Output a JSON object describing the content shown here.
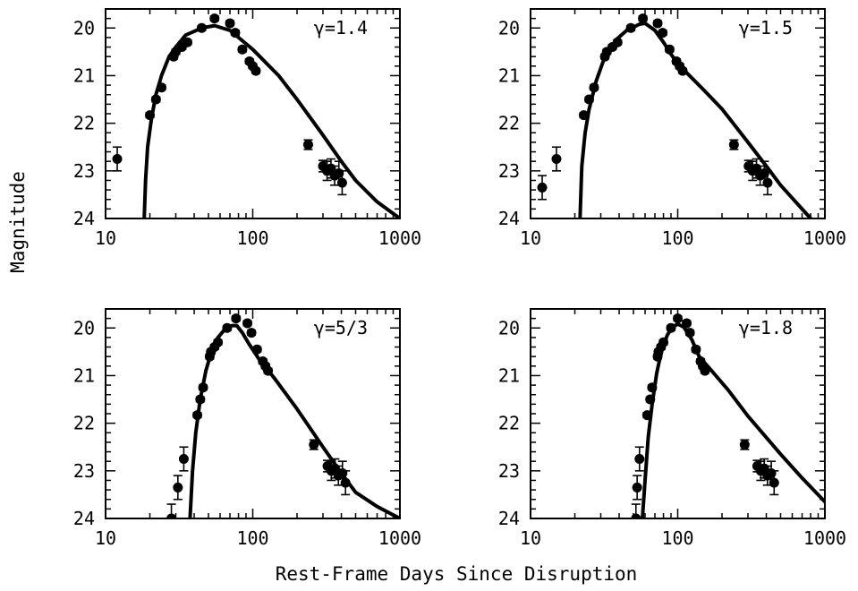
{
  "figure": {
    "ylabel": "Magnitude",
    "xlabel": "Rest-Frame Days Since Disruption"
  },
  "chart_data": [
    {
      "type": "scatter",
      "label": "γ=1.4",
      "xscale": "log",
      "xlim": [
        10,
        1000
      ],
      "ylim": [
        24,
        19.6
      ],
      "yinverted": true,
      "xticks": [
        "10",
        "100",
        "1000"
      ],
      "yticks": [
        "20",
        "21",
        "22",
        "23",
        "24"
      ],
      "series": [
        {
          "kind": "points",
          "points": [
            {
              "x": 12,
              "y": 22.75,
              "err": 0.25
            },
            {
              "x": 20,
              "y": 21.83,
              "err": 0.05
            },
            {
              "x": 22,
              "y": 21.5,
              "err": 0.05
            },
            {
              "x": 24,
              "y": 21.25,
              "err": 0.05
            },
            {
              "x": 29,
              "y": 20.6,
              "err": 0.05
            },
            {
              "x": 30,
              "y": 20.5,
              "err": 0.05
            },
            {
              "x": 33,
              "y": 20.4,
              "err": 0.05
            },
            {
              "x": 36,
              "y": 20.3,
              "err": 0.05
            },
            {
              "x": 45,
              "y": 20.0,
              "err": 0.05
            },
            {
              "x": 55,
              "y": 19.8,
              "err": 0.05
            },
            {
              "x": 70,
              "y": 19.9,
              "err": 0.05
            },
            {
              "x": 76,
              "y": 20.1,
              "err": 0.05
            },
            {
              "x": 85,
              "y": 20.45,
              "err": 0.05
            },
            {
              "x": 95,
              "y": 20.7,
              "err": 0.05
            },
            {
              "x": 100,
              "y": 20.8,
              "err": 0.05
            },
            {
              "x": 105,
              "y": 20.9,
              "err": 0.05
            },
            {
              "x": 238,
              "y": 22.45,
              "err": 0.1
            },
            {
              "x": 300,
              "y": 22.9,
              "err": 0.12
            },
            {
              "x": 320,
              "y": 23.0,
              "err": 0.2
            },
            {
              "x": 340,
              "y": 22.95,
              "err": 0.2
            },
            {
              "x": 360,
              "y": 23.1,
              "err": 0.2
            },
            {
              "x": 385,
              "y": 23.05,
              "err": 0.25
            },
            {
              "x": 405,
              "y": 23.25,
              "err": 0.25
            }
          ]
        },
        {
          "kind": "model",
          "curve": [
            [
              18.3,
              24.0
            ],
            [
              18.7,
              23.2
            ],
            [
              19.3,
              22.5
            ],
            [
              20.5,
              21.9
            ],
            [
              22,
              21.4
            ],
            [
              24,
              21.0
            ],
            [
              27,
              20.6
            ],
            [
              30,
              20.4
            ],
            [
              35,
              20.15
            ],
            [
              45,
              20.0
            ],
            [
              55,
              19.95
            ],
            [
              70,
              20.05
            ],
            [
              80,
              20.2
            ],
            [
              100,
              20.45
            ],
            [
              150,
              21.0
            ],
            [
              200,
              21.5
            ],
            [
              300,
              22.25
            ],
            [
              400,
              22.8
            ],
            [
              500,
              23.2
            ],
            [
              700,
              23.65
            ],
            [
              1000,
              24.0
            ]
          ]
        }
      ]
    },
    {
      "type": "scatter",
      "label": "γ=1.5",
      "xscale": "log",
      "xlim": [
        10,
        1000
      ],
      "ylim": [
        24,
        19.6
      ],
      "yinverted": true,
      "xticks": [
        "10",
        "100",
        "1000"
      ],
      "yticks": [
        "20",
        "21",
        "22",
        "23",
        "24"
      ],
      "series": [
        {
          "kind": "points",
          "points": [
            {
              "x": 12,
              "y": 23.35,
              "err": 0.25
            },
            {
              "x": 15,
              "y": 22.75,
              "err": 0.25
            },
            {
              "x": 23,
              "y": 21.83,
              "err": 0.05
            },
            {
              "x": 25,
              "y": 21.5,
              "err": 0.05
            },
            {
              "x": 27,
              "y": 21.25,
              "err": 0.05
            },
            {
              "x": 32,
              "y": 20.6,
              "err": 0.05
            },
            {
              "x": 33,
              "y": 20.5,
              "err": 0.05
            },
            {
              "x": 36,
              "y": 20.4,
              "err": 0.05
            },
            {
              "x": 39,
              "y": 20.3,
              "err": 0.05
            },
            {
              "x": 48,
              "y": 20.0,
              "err": 0.05
            },
            {
              "x": 58,
              "y": 19.8,
              "err": 0.05
            },
            {
              "x": 73,
              "y": 19.9,
              "err": 0.05
            },
            {
              "x": 79,
              "y": 20.1,
              "err": 0.05
            },
            {
              "x": 88,
              "y": 20.45,
              "err": 0.05
            },
            {
              "x": 98,
              "y": 20.7,
              "err": 0.05
            },
            {
              "x": 103,
              "y": 20.8,
              "err": 0.05
            },
            {
              "x": 108,
              "y": 20.9,
              "err": 0.05
            },
            {
              "x": 241,
              "y": 22.45,
              "err": 0.1
            },
            {
              "x": 303,
              "y": 22.9,
              "err": 0.12
            },
            {
              "x": 323,
              "y": 23.0,
              "err": 0.2
            },
            {
              "x": 343,
              "y": 22.95,
              "err": 0.2
            },
            {
              "x": 363,
              "y": 23.1,
              "err": 0.2
            },
            {
              "x": 388,
              "y": 23.05,
              "err": 0.25
            },
            {
              "x": 408,
              "y": 23.25,
              "err": 0.25
            }
          ]
        },
        {
          "kind": "model",
          "curve": [
            [
              21.7,
              24.0
            ],
            [
              22.3,
              22.9
            ],
            [
              23.5,
              22.2
            ],
            [
              25,
              21.7
            ],
            [
              28,
              21.1
            ],
            [
              32,
              20.6
            ],
            [
              38,
              20.25
            ],
            [
              45,
              20.05
            ],
            [
              55,
              19.92
            ],
            [
              60,
              19.9
            ],
            [
              70,
              20.05
            ],
            [
              80,
              20.3
            ],
            [
              90,
              20.55
            ],
            [
              100,
              20.75
            ],
            [
              150,
              21.3
            ],
            [
              200,
              21.7
            ],
            [
              300,
              22.4
            ],
            [
              400,
              22.9
            ],
            [
              500,
              23.3
            ],
            [
              700,
              23.8
            ],
            [
              800,
              24.0
            ]
          ]
        }
      ]
    },
    {
      "type": "scatter",
      "label": "γ=5/3",
      "xscale": "log",
      "xlim": [
        10,
        1000
      ],
      "ylim": [
        24,
        19.6
      ],
      "yinverted": true,
      "xticks": [
        "10",
        "100",
        "1000"
      ],
      "yticks": [
        "20",
        "21",
        "22",
        "23",
        "24"
      ],
      "series": [
        {
          "kind": "points",
          "points": [
            {
              "x": 28,
              "y": 24.0,
              "err": 0.3
            },
            {
              "x": 31,
              "y": 23.35,
              "err": 0.25
            },
            {
              "x": 34,
              "y": 22.75,
              "err": 0.25
            },
            {
              "x": 42,
              "y": 21.83,
              "err": 0.05
            },
            {
              "x": 44,
              "y": 21.5,
              "err": 0.05
            },
            {
              "x": 46,
              "y": 21.25,
              "err": 0.05
            },
            {
              "x": 51,
              "y": 20.6,
              "err": 0.05
            },
            {
              "x": 52,
              "y": 20.5,
              "err": 0.05
            },
            {
              "x": 55,
              "y": 20.4,
              "err": 0.05
            },
            {
              "x": 58,
              "y": 20.3,
              "err": 0.05
            },
            {
              "x": 67,
              "y": 20.0,
              "err": 0.05
            },
            {
              "x": 77,
              "y": 19.8,
              "err": 0.05
            },
            {
              "x": 92,
              "y": 19.9,
              "err": 0.05
            },
            {
              "x": 98,
              "y": 20.1,
              "err": 0.05
            },
            {
              "x": 107,
              "y": 20.45,
              "err": 0.05
            },
            {
              "x": 117,
              "y": 20.7,
              "err": 0.05
            },
            {
              "x": 122,
              "y": 20.8,
              "err": 0.05
            },
            {
              "x": 127,
              "y": 20.9,
              "err": 0.05
            },
            {
              "x": 260,
              "y": 22.45,
              "err": 0.1
            },
            {
              "x": 322,
              "y": 22.9,
              "err": 0.12
            },
            {
              "x": 342,
              "y": 23.0,
              "err": 0.2
            },
            {
              "x": 362,
              "y": 22.95,
              "err": 0.2
            },
            {
              "x": 382,
              "y": 23.1,
              "err": 0.2
            },
            {
              "x": 407,
              "y": 23.05,
              "err": 0.25
            },
            {
              "x": 427,
              "y": 23.25,
              "err": 0.25
            }
          ]
        },
        {
          "kind": "model",
          "curve": [
            [
              37.5,
              24.0
            ],
            [
              39,
              23.0
            ],
            [
              41,
              22.2
            ],
            [
              44,
              21.5
            ],
            [
              48,
              20.9
            ],
            [
              53,
              20.45
            ],
            [
              58,
              20.2
            ],
            [
              65,
              20.02
            ],
            [
              72,
              19.95
            ],
            [
              78,
              19.95
            ],
            [
              85,
              20.1
            ],
            [
              95,
              20.35
            ],
            [
              110,
              20.65
            ],
            [
              140,
              21.05
            ],
            [
              200,
              21.7
            ],
            [
              300,
              22.5
            ],
            [
              400,
              23.05
            ],
            [
              500,
              23.45
            ],
            [
              700,
              23.75
            ],
            [
              1000,
              24.0
            ]
          ]
        }
      ]
    },
    {
      "type": "scatter",
      "label": "γ=1.8",
      "xscale": "log",
      "xlim": [
        10,
        1000
      ],
      "ylim": [
        24,
        19.6
      ],
      "yinverted": true,
      "xticks": [
        "10",
        "100",
        "1000"
      ],
      "yticks": [
        "20",
        "21",
        "22",
        "23",
        "24"
      ],
      "series": [
        {
          "kind": "points",
          "points": [
            {
              "x": 52,
              "y": 24.0,
              "err": 0.3
            },
            {
              "x": 53,
              "y": 23.35,
              "err": 0.25
            },
            {
              "x": 55,
              "y": 22.75,
              "err": 0.25
            },
            {
              "x": 62,
              "y": 21.83,
              "err": 0.05
            },
            {
              "x": 65,
              "y": 21.5,
              "err": 0.05
            },
            {
              "x": 67,
              "y": 21.25,
              "err": 0.05
            },
            {
              "x": 73,
              "y": 20.6,
              "err": 0.05
            },
            {
              "x": 74,
              "y": 20.5,
              "err": 0.05
            },
            {
              "x": 77,
              "y": 20.4,
              "err": 0.05
            },
            {
              "x": 80,
              "y": 20.3,
              "err": 0.05
            },
            {
              "x": 90,
              "y": 20.0,
              "err": 0.05
            },
            {
              "x": 100,
              "y": 19.8,
              "err": 0.05
            },
            {
              "x": 115,
              "y": 19.9,
              "err": 0.05
            },
            {
              "x": 121,
              "y": 20.1,
              "err": 0.05
            },
            {
              "x": 133,
              "y": 20.45,
              "err": 0.05
            },
            {
              "x": 143,
              "y": 20.7,
              "err": 0.05
            },
            {
              "x": 148,
              "y": 20.8,
              "err": 0.05
            },
            {
              "x": 153,
              "y": 20.9,
              "err": 0.05
            },
            {
              "x": 285,
              "y": 22.45,
              "err": 0.1
            },
            {
              "x": 347,
              "y": 22.9,
              "err": 0.12
            },
            {
              "x": 367,
              "y": 23.0,
              "err": 0.2
            },
            {
              "x": 387,
              "y": 22.95,
              "err": 0.2
            },
            {
              "x": 407,
              "y": 23.1,
              "err": 0.2
            },
            {
              "x": 432,
              "y": 23.05,
              "err": 0.25
            },
            {
              "x": 452,
              "y": 23.25,
              "err": 0.25
            }
          ]
        },
        {
          "kind": "model",
          "curve": [
            [
              57.5,
              24.0
            ],
            [
              60,
              23.2
            ],
            [
              63,
              22.3
            ],
            [
              67,
              21.6
            ],
            [
              72,
              20.95
            ],
            [
              78,
              20.45
            ],
            [
              85,
              20.15
            ],
            [
              92,
              19.98
            ],
            [
              100,
              19.92
            ],
            [
              110,
              19.98
            ],
            [
              125,
              20.25
            ],
            [
              140,
              20.6
            ],
            [
              170,
              20.9
            ],
            [
              220,
              21.3
            ],
            [
              300,
              21.85
            ],
            [
              400,
              22.3
            ],
            [
              500,
              22.65
            ],
            [
              700,
              23.15
            ],
            [
              1000,
              23.65
            ]
          ]
        }
      ]
    }
  ]
}
